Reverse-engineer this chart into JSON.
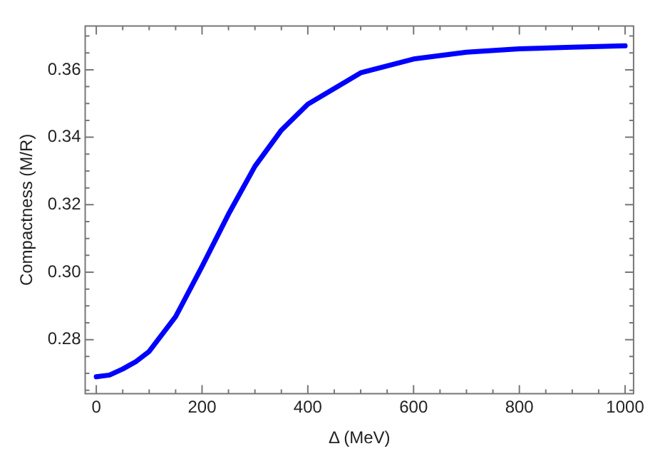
{
  "chart_data": {
    "type": "line",
    "xlabel": "Δ (MeV)",
    "ylabel": "Compactness (M/R)",
    "x": [
      0,
      25,
      50,
      75,
      100,
      150,
      200,
      250,
      300,
      350,
      400,
      500,
      600,
      700,
      800,
      900,
      1000
    ],
    "series": [
      {
        "color": "#0000ff",
        "values": [
          0.269,
          0.2695,
          0.2713,
          0.2735,
          0.2765,
          0.2868,
          0.3017,
          0.3172,
          0.3314,
          0.3421,
          0.3498,
          0.3591,
          0.3632,
          0.3652,
          0.3662,
          0.3667,
          0.3671
        ]
      }
    ],
    "xlim": [
      -21,
      1016
    ],
    "ylim": [
      0.264,
      0.373
    ],
    "xticks": [
      0,
      {
        "value": 50,
        "label": null
      },
      200,
      {
        "value": 100,
        "label": null
      },
      {
        "value": 150,
        "label": null
      },
      {
        "value": 250,
        "label": null
      },
      {
        "value": 300,
        "label": null
      },
      {
        "value": 350,
        "label": null
      },
      400,
      {
        "value": 450,
        "label": null
      },
      {
        "value": 500,
        "label": null
      },
      {
        "value": 550,
        "label": null
      },
      600,
      {
        "value": 650,
        "label": null
      },
      {
        "value": 700,
        "label": null
      },
      {
        "value": 750,
        "label": null
      },
      800,
      {
        "value": 850,
        "label": null
      },
      {
        "value": 900,
        "label": null
      },
      {
        "value": 950,
        "label": null
      },
      1000
    ],
    "yticks": [
      {
        "value": 0.265,
        "label": null
      },
      {
        "value": 0.27,
        "label": null
      },
      {
        "value": 0.275,
        "label": null
      },
      0.28,
      {
        "value": 0.285,
        "label": null
      },
      {
        "value": 0.29,
        "label": null
      },
      {
        "value": 0.295,
        "label": null
      },
      {
        "value": 0.3,
        "label": "0.30"
      },
      {
        "value": 0.305,
        "label": null
      },
      {
        "value": 0.31,
        "label": null
      },
      {
        "value": 0.315,
        "label": null
      },
      0.32,
      {
        "value": 0.325,
        "label": null
      },
      {
        "value": 0.33,
        "label": null
      },
      {
        "value": 0.335,
        "label": null
      },
      0.34,
      {
        "value": 0.345,
        "label": null
      },
      {
        "value": 0.35,
        "label": null
      },
      {
        "value": 0.355,
        "label": null
      },
      0.36,
      {
        "value": 0.365,
        "label": null
      },
      {
        "value": 0.37,
        "label": null
      }
    ],
    "grid": false,
    "legend": false,
    "marker": "none",
    "line_style": "solid"
  }
}
